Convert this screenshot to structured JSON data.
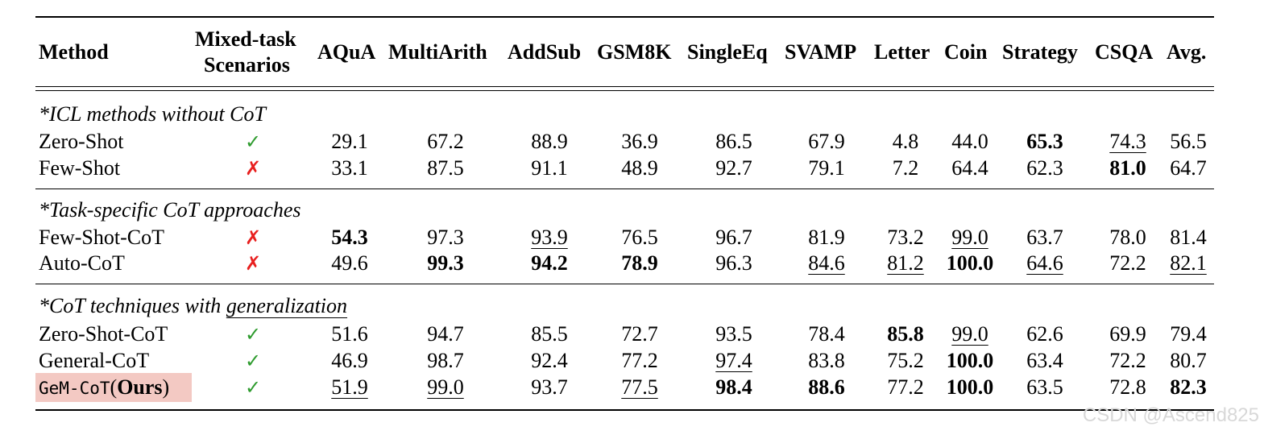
{
  "headers": {
    "method": "Method",
    "mixed_line1": "Mixed-task",
    "mixed_line2": "Scenarios",
    "cols": [
      "AQuA",
      "MultiArith",
      "AddSub",
      "GSM8K",
      "SingleEq",
      "SVAMP",
      "Letter",
      "Coin",
      "Strategy",
      "CSQA",
      "Avg."
    ]
  },
  "sections": [
    {
      "title": "*ICL methods without CoT",
      "rows": [
        {
          "method": "Zero-Shot",
          "mixed": "✓",
          "values": [
            "29.1",
            "67.2",
            "88.9",
            "36.9",
            "86.5",
            "67.9",
            "4.8",
            "44.0",
            "65.3",
            "74.3",
            "56.5"
          ]
        },
        {
          "method": "Few-Shot",
          "mixed": "✗",
          "values": [
            "33.1",
            "87.5",
            "91.1",
            "48.9",
            "92.7",
            "79.1",
            "7.2",
            "64.4",
            "62.3",
            "81.0",
            "64.7"
          ]
        }
      ]
    },
    {
      "title": "*Task-specific CoT approaches",
      "rows": [
        {
          "method": "Few-Shot-CoT",
          "mixed": "✗",
          "values": [
            "54.3",
            "97.3",
            "93.9",
            "76.5",
            "96.7",
            "81.9",
            "73.2",
            "99.0",
            "63.7",
            "78.0",
            "81.4"
          ]
        },
        {
          "method": "Auto-CoT",
          "mixed": "✗",
          "values": [
            "49.6",
            "99.3",
            "94.2",
            "78.9",
            "96.3",
            "84.6",
            "81.2",
            "100.0",
            "64.6",
            "72.2",
            "82.1"
          ]
        }
      ]
    },
    {
      "title_part1": "*CoT techniques with ",
      "title_part2": "generalization",
      "rows": [
        {
          "method": "Zero-Shot-CoT",
          "mixed": "✓",
          "values": [
            "51.6",
            "94.7",
            "85.5",
            "72.7",
            "93.5",
            "78.4",
            "85.8",
            "99.0",
            "62.6",
            "69.9",
            "79.4"
          ]
        },
        {
          "method": "General-CoT",
          "mixed": "✓",
          "values": [
            "46.9",
            "98.7",
            "92.4",
            "77.2",
            "97.4",
            "83.8",
            "75.2",
            "100.0",
            "63.4",
            "72.2",
            "80.7"
          ]
        },
        {
          "method_mono": "GeM-CoT",
          "method_open": "(",
          "method_bold": "Ours",
          "method_close": ")",
          "mixed": "✓",
          "values": [
            "51.9",
            "99.0",
            "93.7",
            "77.5",
            "98.4",
            "88.6",
            "77.2",
            "100.0",
            "63.5",
            "72.8",
            "82.3"
          ]
        }
      ]
    }
  ],
  "watermark": "CSDN @Ascend825",
  "colors": {
    "check": "#2e9b2e",
    "cross": "#e8201f",
    "ours_highlight": "#f3c9c3"
  }
}
